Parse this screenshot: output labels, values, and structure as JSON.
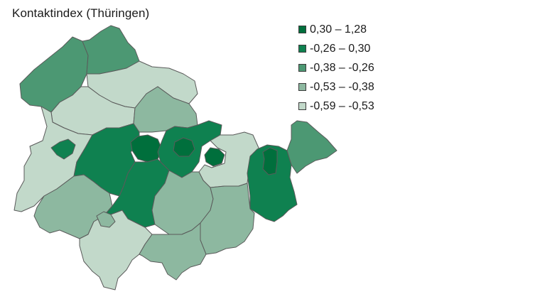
{
  "title": "Kontaktindex (Thüringen)",
  "legend": {
    "items": [
      {
        "label": "0,30 – 1,28",
        "color": "#006f3c"
      },
      {
        "label": "-0,26 – 0,30",
        "color": "#0f8150"
      },
      {
        "label": "-0,38 – -0,26",
        "color": "#4c9873"
      },
      {
        "label": "-0,53 – -0,38",
        "color": "#8db8a0"
      },
      {
        "label": "-0,59 – -0,53",
        "color": "#c2d9ca"
      }
    ]
  },
  "map": {
    "regions": [
      {
        "name": "region-nordwest",
        "class": 2
      },
      {
        "name": "region-nord",
        "class": 2
      },
      {
        "name": "region-nord-mitte",
        "class": 4
      },
      {
        "name": "region-west-mitte",
        "class": 4
      },
      {
        "name": "region-mitte-nord",
        "class": 3
      },
      {
        "name": "region-west",
        "class": 4
      },
      {
        "name": "region-west-exklave",
        "class": 1
      },
      {
        "name": "region-mitte-west",
        "class": 1
      },
      {
        "name": "region-mitte-zentral",
        "class": 0
      },
      {
        "name": "region-mitte-ost",
        "class": 1
      },
      {
        "name": "region-mitte-ost-inner",
        "class": 0
      },
      {
        "name": "region-ost-klein",
        "class": 0
      },
      {
        "name": "region-ost-mitte",
        "class": 4
      },
      {
        "name": "region-ost",
        "class": 1
      },
      {
        "name": "region-ost-inner",
        "class": 0
      },
      {
        "name": "region-nordost",
        "class": 2
      },
      {
        "name": "region-suedwest",
        "class": 3
      },
      {
        "name": "region-sued-mitte",
        "class": 1
      },
      {
        "name": "region-sued",
        "class": 4
      },
      {
        "name": "region-sued-zentral",
        "class": 3
      },
      {
        "name": "region-suedost-mitte",
        "class": 3
      },
      {
        "name": "region-suedost",
        "class": 3
      },
      {
        "name": "region-sued-klein",
        "class": 3
      }
    ]
  }
}
